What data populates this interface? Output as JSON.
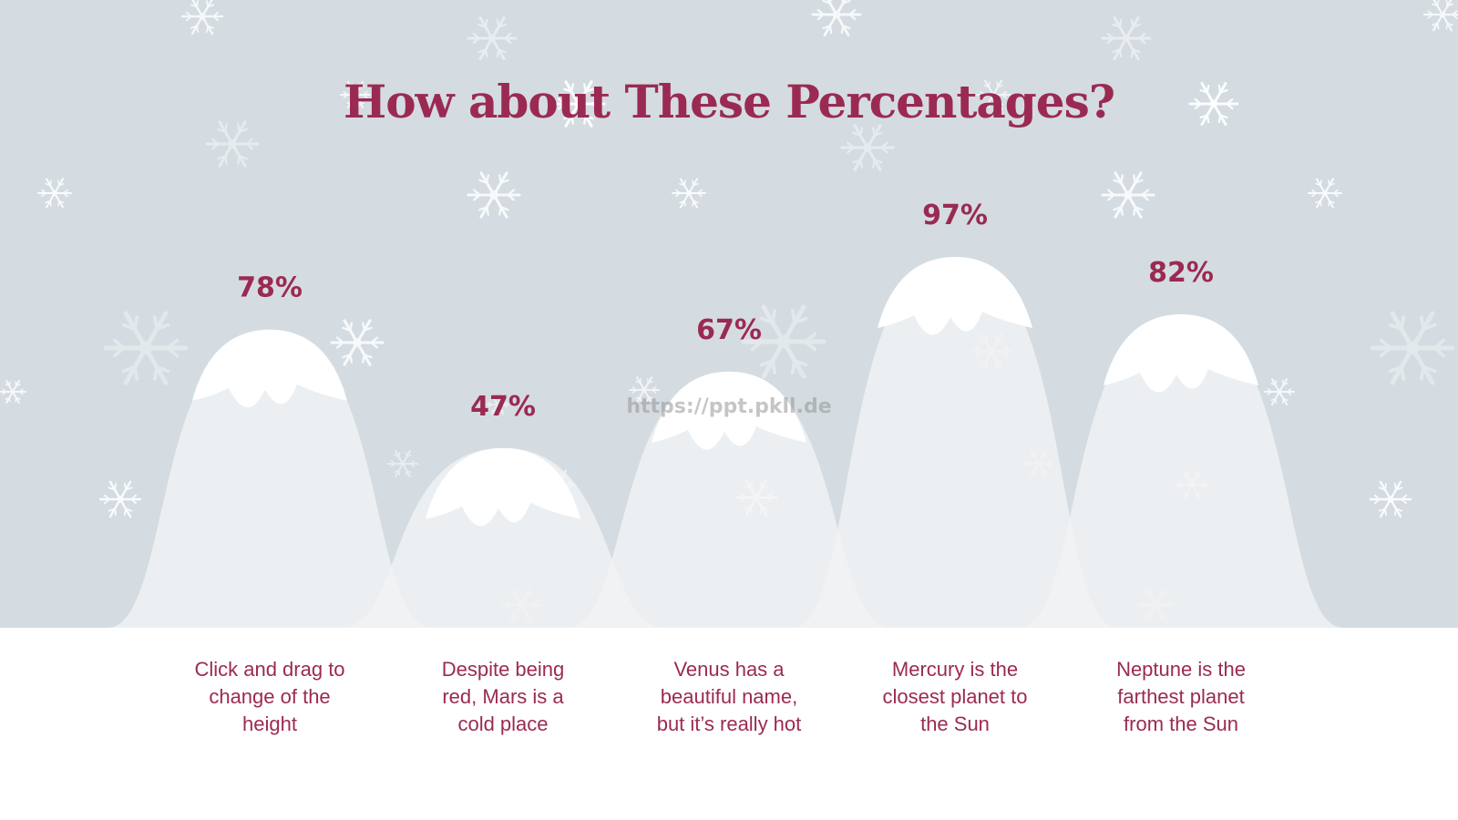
{
  "slide": {
    "title": "How about These Percentages?",
    "watermark": "https://ppt.pkll.de"
  },
  "colors": {
    "title": "#9b2a52",
    "background_sky": "#d4dce1",
    "mountain": "#f1f3f4",
    "snow_cap": "#ffffff"
  },
  "chart_data": {
    "type": "bar",
    "style": "mountain-peaks",
    "ylim": [
      0,
      100
    ],
    "grid": false,
    "categories": [
      "Click and drag to change of the height",
      "Despite being red, Mars is a cold place",
      "Venus has a beautiful name, but it’s really hot",
      "Mercury is the closest planet to the Sun",
      "Neptune is the farthest planet from the Sun"
    ],
    "category_lines": [
      "Click and drag to\nchange of the\nheight",
      "Despite being\nred, Mars is a\ncold place",
      "Venus has a\nbeautiful name,\nbut it’s really hot",
      "Mercury is the\nclosest planet to\nthe Sun",
      "Neptune is the\nfarthest planet\nfrom the Sun"
    ],
    "values": [
      78,
      47,
      67,
      97,
      82
    ],
    "data_labels": [
      "78%",
      "47%",
      "67%",
      "97%",
      "82%"
    ]
  }
}
